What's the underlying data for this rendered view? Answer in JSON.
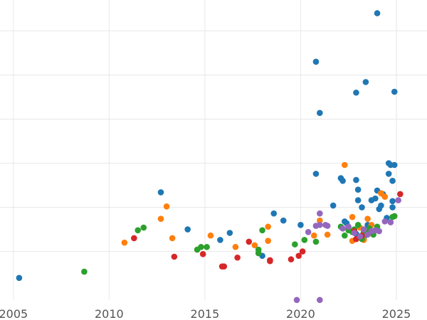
{
  "chart_data": {
    "type": "scatter",
    "title": "",
    "xlabel": "",
    "ylabel": "",
    "xlim": [
      2004.3,
      2026.6
    ],
    "ylim": [
      -10,
      335
    ],
    "grid": true,
    "legend": "none",
    "x_ticks": [
      2005,
      2010,
      2015,
      2020,
      2025
    ],
    "y_gridlines": [
      50,
      100,
      150,
      200,
      250,
      300
    ],
    "colors": {
      "blue": "#1f77b4",
      "orange": "#ff7f0e",
      "green": "#2ca02c",
      "red": "#d62728",
      "purple": "#9467bd"
    },
    "series": [
      {
        "color": "blue",
        "points": [
          [
            2005.3,
            20
          ],
          [
            2012.7,
            117
          ],
          [
            2014.1,
            75
          ],
          [
            2015.8,
            63
          ],
          [
            2016.3,
            71
          ],
          [
            2018.0,
            45
          ],
          [
            2018.6,
            93
          ],
          [
            2019.1,
            85
          ],
          [
            2020.0,
            80
          ],
          [
            2020.8,
            265
          ],
          [
            2020.8,
            138
          ],
          [
            2021.0,
            207
          ],
          [
            2021.7,
            102
          ],
          [
            2022.1,
            133
          ],
          [
            2022.2,
            130
          ],
          [
            2022.3,
            84
          ],
          [
            2022.4,
            82
          ],
          [
            2022.9,
            230
          ],
          [
            2022.9,
            131
          ],
          [
            2023.0,
            120
          ],
          [
            2023.0,
            108
          ],
          [
            2023.2,
            100
          ],
          [
            2023.3,
            65
          ],
          [
            2023.4,
            242
          ],
          [
            2023.6,
            75
          ],
          [
            2023.7,
            108
          ],
          [
            2023.9,
            110
          ],
          [
            2024.0,
            119
          ],
          [
            2024.0,
            320
          ],
          [
            2024.1,
            98
          ],
          [
            2024.2,
            102
          ],
          [
            2024.3,
            115
          ],
          [
            2024.5,
            88
          ],
          [
            2024.6,
            150
          ],
          [
            2024.6,
            138
          ],
          [
            2024.7,
            148
          ],
          [
            2024.8,
            130
          ],
          [
            2024.9,
            148
          ],
          [
            2024.9,
            231
          ],
          [
            2024.8,
            100
          ],
          [
            2024.8,
            107
          ],
          [
            2022.9,
            70
          ],
          [
            2023.5,
            80
          ]
        ]
      },
      {
        "color": "orange",
        "points": [
          [
            2010.8,
            60
          ],
          [
            2012.7,
            87
          ],
          [
            2013.0,
            101
          ],
          [
            2013.3,
            65
          ],
          [
            2015.3,
            68
          ],
          [
            2016.6,
            55
          ],
          [
            2017.6,
            57
          ],
          [
            2018.3,
            78
          ],
          [
            2018.3,
            62
          ],
          [
            2020.7,
            68
          ],
          [
            2021.0,
            85
          ],
          [
            2021.4,
            69
          ],
          [
            2022.3,
            148
          ],
          [
            2022.7,
            89
          ],
          [
            2022.7,
            62
          ],
          [
            2023.1,
            77
          ],
          [
            2023.5,
            87
          ],
          [
            2023.7,
            80
          ],
          [
            2024.2,
            116
          ],
          [
            2024.4,
            112
          ],
          [
            2023.3,
            63
          ],
          [
            2022.5,
            75
          ]
        ]
      },
      {
        "color": "green",
        "points": [
          [
            2008.7,
            27
          ],
          [
            2011.5,
            74
          ],
          [
            2011.8,
            77
          ],
          [
            2014.6,
            52
          ],
          [
            2014.8,
            55
          ],
          [
            2015.1,
            55
          ],
          [
            2017.8,
            52
          ],
          [
            2017.8,
            48
          ],
          [
            2018.0,
            74
          ],
          [
            2019.7,
            58
          ],
          [
            2020.2,
            63
          ],
          [
            2020.8,
            61
          ],
          [
            2022.1,
            78
          ],
          [
            2022.3,
            68
          ],
          [
            2022.5,
            74
          ],
          [
            2022.7,
            72
          ],
          [
            2023.0,
            80
          ],
          [
            2023.2,
            68
          ],
          [
            2023.2,
            64
          ],
          [
            2023.5,
            71
          ],
          [
            2023.8,
            69
          ],
          [
            2024.0,
            78
          ],
          [
            2024.8,
            89
          ],
          [
            2024.9,
            90
          ],
          [
            2022.8,
            75
          ],
          [
            2023.3,
            72
          ],
          [
            2023.6,
            76
          ]
        ]
      },
      {
        "color": "red",
        "points": [
          [
            2011.3,
            65
          ],
          [
            2013.4,
            44
          ],
          [
            2014.9,
            47
          ],
          [
            2015.9,
            33
          ],
          [
            2016.0,
            33
          ],
          [
            2016.7,
            43
          ],
          [
            2017.3,
            61
          ],
          [
            2018.4,
            39
          ],
          [
            2018.4,
            40
          ],
          [
            2019.5,
            41
          ],
          [
            2019.9,
            45
          ],
          [
            2020.1,
            50
          ],
          [
            2022.8,
            73
          ],
          [
            2022.9,
            64
          ],
          [
            2023.2,
            68
          ],
          [
            2025.2,
            115
          ]
        ]
      },
      {
        "color": "purple",
        "points": [
          [
            2019.8,
            -5
          ],
          [
            2021.0,
            -5
          ],
          [
            2020.4,
            72
          ],
          [
            2020.8,
            79
          ],
          [
            2021.0,
            80
          ],
          [
            2021.0,
            93
          ],
          [
            2021.3,
            80
          ],
          [
            2021.4,
            79
          ],
          [
            2022.2,
            76
          ],
          [
            2022.8,
            71
          ],
          [
            2023.1,
            67
          ],
          [
            2023.3,
            75
          ],
          [
            2023.7,
            73
          ],
          [
            2023.9,
            74
          ],
          [
            2024.1,
            73
          ],
          [
            2024.4,
            84
          ],
          [
            2024.7,
            83
          ],
          [
            2025.1,
            108
          ],
          [
            2022.5,
            78
          ],
          [
            2023.5,
            69
          ]
        ]
      }
    ]
  }
}
